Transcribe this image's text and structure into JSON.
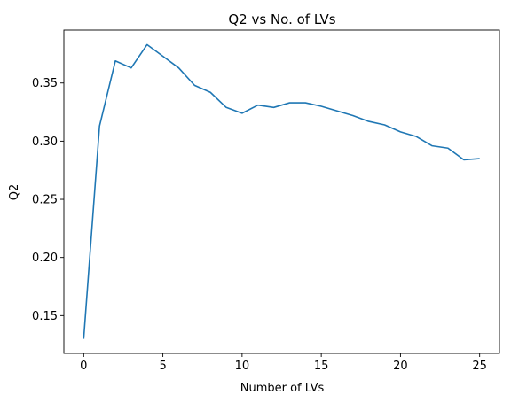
{
  "chart_data": {
    "type": "line",
    "title": "Q2 vs No. of LVs",
    "xlabel": "Number of LVs",
    "ylabel": "Q2",
    "xlim": [
      -1.25,
      26.25
    ],
    "ylim": [
      0.1175,
      0.3955
    ],
    "xticks": [
      0,
      5,
      10,
      15,
      20,
      25
    ],
    "xtick_labels": [
      "0",
      "5",
      "10",
      "15",
      "20",
      "25"
    ],
    "yticks": [
      0.15,
      0.2,
      0.25,
      0.3,
      0.35
    ],
    "ytick_labels": [
      "0.15",
      "0.20",
      "0.25",
      "0.30",
      "0.35"
    ],
    "grid": false,
    "series": [
      {
        "color": "#1f77b4",
        "x": [
          0,
          1,
          2,
          3,
          4,
          5,
          6,
          7,
          8,
          9,
          10,
          11,
          12,
          13,
          14,
          15,
          16,
          17,
          18,
          19,
          20,
          21,
          22,
          23,
          24,
          25
        ],
        "y": [
          0.13,
          0.313,
          0.369,
          0.363,
          0.383,
          0.373,
          0.363,
          0.348,
          0.342,
          0.329,
          0.324,
          0.331,
          0.329,
          0.333,
          0.333,
          0.33,
          0.326,
          0.322,
          0.317,
          0.314,
          0.308,
          0.304,
          0.296,
          0.294,
          0.284,
          0.285
        ]
      }
    ]
  }
}
